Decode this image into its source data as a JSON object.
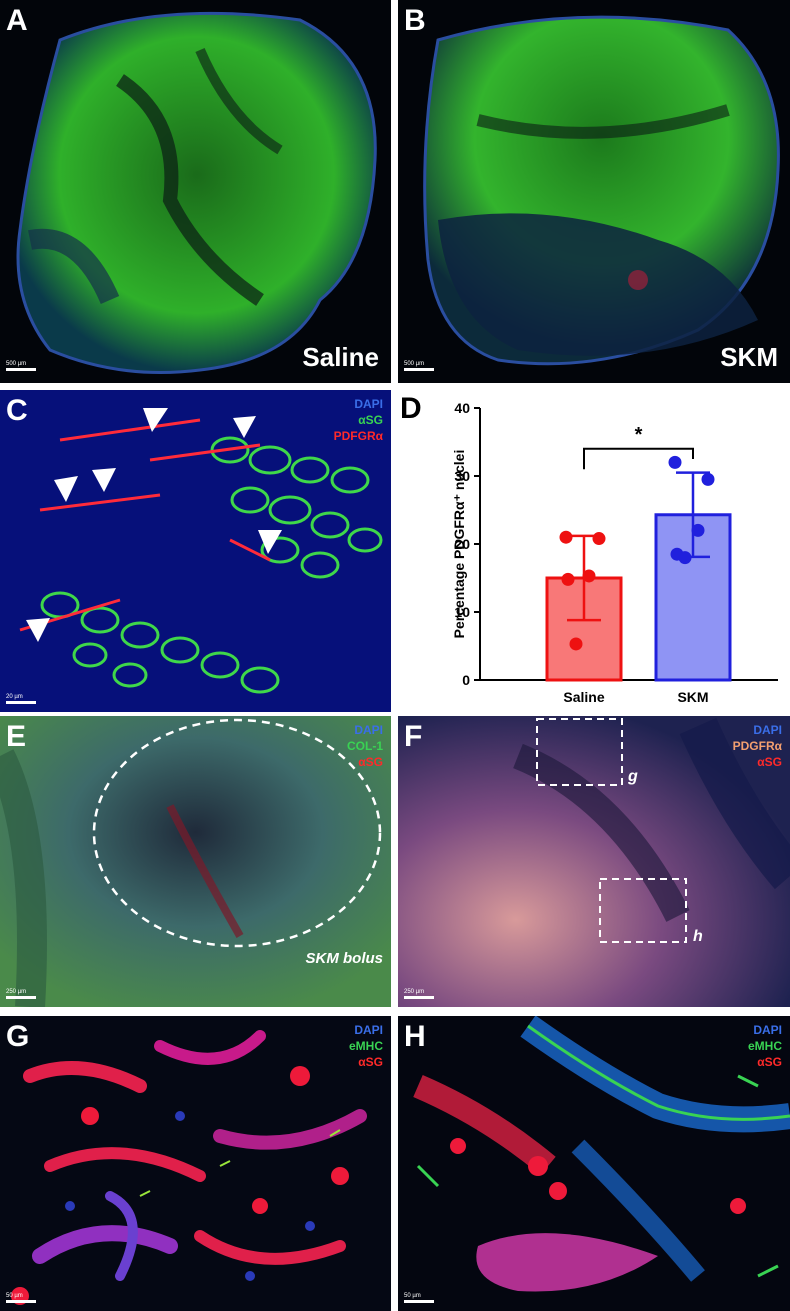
{
  "panels": {
    "A": {
      "label": "A",
      "condition": "Saline",
      "scale": "500 µm"
    },
    "B": {
      "label": "B",
      "condition": "SKM",
      "scale": "500 µm"
    },
    "C": {
      "label": "C",
      "legend": [
        "DAPI",
        "αSG",
        "PDFGRα"
      ],
      "legend_colors": [
        "#3a6ee8",
        "#39d353",
        "#ff2a2a"
      ],
      "scale": "20 µm"
    },
    "D": {
      "label": "D"
    },
    "E": {
      "label": "E",
      "legend": [
        "DAPI",
        "COL-1",
        "αSG"
      ],
      "legend_colors": [
        "#3a6ee8",
        "#39d353",
        "#ff2a2a"
      ],
      "annotation": "SKM bolus",
      "scale": "250 µm"
    },
    "F": {
      "label": "F",
      "legend": [
        "DAPI",
        "PDGFRα",
        "αSG"
      ],
      "legend_colors": [
        "#3a6ee8",
        "#f4a070",
        "#ff2a2a"
      ],
      "box_g": "g",
      "box_h": "h",
      "scale": "250 µm"
    },
    "G": {
      "label": "G",
      "legend": [
        "DAPI",
        "eMHC",
        "αSG"
      ],
      "legend_colors": [
        "#3a6ee8",
        "#39d353",
        "#ff2a2a"
      ],
      "scale": "50 µm"
    },
    "H": {
      "label": "H",
      "legend": [
        "DAPI",
        "eMHC",
        "αSG"
      ],
      "legend_colors": [
        "#3a6ee8",
        "#39d353",
        "#ff2a2a"
      ],
      "scale": "50 µm"
    }
  },
  "chart_data": {
    "type": "bar",
    "categories": [
      "Saline",
      "SKM"
    ],
    "values": [
      15,
      24.3
    ],
    "errors": [
      6.2,
      6.2
    ],
    "points": [
      [
        21,
        20.8,
        15.3,
        14.8,
        5.3
      ],
      [
        32,
        29.5,
        22,
        18.5,
        18
      ]
    ],
    "colors": {
      "fill": [
        "#f87878",
        "#8f94f4"
      ],
      "edge": [
        "#ee1111",
        "#2020dd"
      ]
    },
    "ylabel": "Percentage PDGFRα⁺ nuclei",
    "ylim": [
      0,
      40
    ],
    "yticks": [
      0,
      10,
      20,
      30,
      40
    ],
    "significance": "*"
  }
}
